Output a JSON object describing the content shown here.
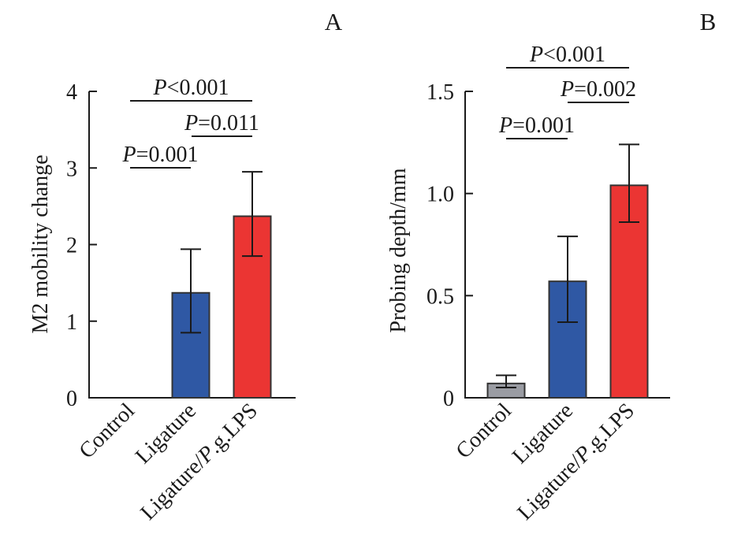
{
  "chart_data": [
    {
      "panel_label": "A",
      "type": "bar",
      "title": "",
      "xlabel": "",
      "ylabel": "M2 mobility change",
      "ylim": [
        0,
        4
      ],
      "yticks": [
        0,
        1,
        2,
        3,
        4
      ],
      "ytick_labels": [
        "0",
        "1",
        "2",
        "3",
        "4"
      ],
      "grid": false,
      "categories": [
        "Control",
        "Ligature",
        "Ligature/P.g.LPS"
      ],
      "category_italic_part": [
        null,
        null,
        "P"
      ],
      "values": [
        0,
        1.37,
        2.37
      ],
      "error_upper": [
        0,
        1.94,
        2.95
      ],
      "error_lower": [
        0,
        0.85,
        1.85
      ],
      "colors": [
        "#9a9ca3",
        "#2f58a4",
        "#eb3533"
      ],
      "annotations": [
        {
          "from": 0,
          "to": 2,
          "p_italic": "P",
          "text": "<0.001",
          "level": 3
        },
        {
          "from": 1,
          "to": 2,
          "p_italic": "P",
          "text": "=0.011",
          "level": 2
        },
        {
          "from": 0,
          "to": 1,
          "p_italic": "P",
          "text": "=0.001",
          "level": 1
        }
      ]
    },
    {
      "panel_label": "B",
      "type": "bar",
      "title": "",
      "xlabel": "",
      "ylabel": "Probing depth/mm",
      "ylim": [
        0,
        1.5
      ],
      "yticks": [
        0,
        0.5,
        1.0,
        1.5
      ],
      "ytick_labels": [
        "0",
        "0.5",
        "1.0",
        "1.5"
      ],
      "grid": false,
      "categories": [
        "Control",
        "Ligature",
        "Ligature/P.g.LPS"
      ],
      "category_italic_part": [
        null,
        null,
        "P"
      ],
      "values": [
        0.07,
        0.57,
        1.04
      ],
      "error_upper": [
        0.11,
        0.79,
        1.24
      ],
      "error_lower": [
        0.05,
        0.37,
        0.86
      ],
      "colors": [
        "#9a9ca3",
        "#2f58a4",
        "#eb3533"
      ],
      "annotations": [
        {
          "from": 0,
          "to": 2,
          "p_italic": "P",
          "text": "<0.001",
          "level": 3
        },
        {
          "from": 1,
          "to": 2,
          "p_italic": "P",
          "text": "=0.002",
          "level": 2
        },
        {
          "from": 0,
          "to": 1,
          "p_italic": "P",
          "text": "=0.001",
          "level": 1
        }
      ]
    }
  ]
}
